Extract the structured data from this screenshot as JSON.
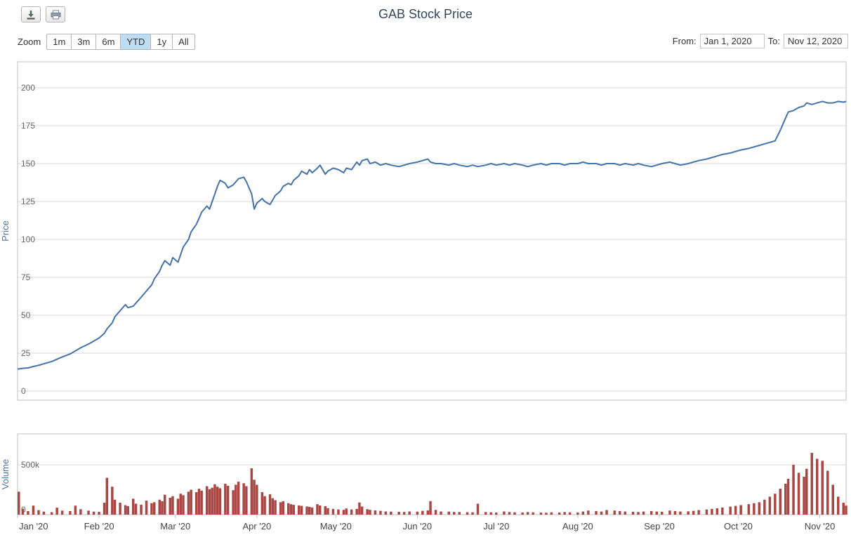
{
  "header": {
    "title": "GAB Stock Price"
  },
  "export_menu": {
    "buttons": [
      {
        "name": "download",
        "icon": "download-icon"
      },
      {
        "name": "print",
        "icon": "print-icon"
      }
    ]
  },
  "toolbar": {
    "zoom_label": "Zoom",
    "zoom_buttons": [
      {
        "label": "1m",
        "selected": false
      },
      {
        "label": "3m",
        "selected": false
      },
      {
        "label": "6m",
        "selected": false
      },
      {
        "label": "YTD",
        "selected": true
      },
      {
        "label": "1y",
        "selected": false
      },
      {
        "label": "All",
        "selected": false
      }
    ],
    "from_label": "From:",
    "from_value": "Jan 1, 2020",
    "to_label": "To:",
    "to_value": "Nov 12, 2020"
  },
  "ui_colors": {
    "title": "#33475b",
    "selected_zoom_bg": "#bfdcf0",
    "price_line": "#4572a7",
    "volume_bar": "#aa4643",
    "grid": "#d8d8d8",
    "plot_border": "#c0c0c0",
    "tick_label": "#666666",
    "axis_title": "#4d759e"
  },
  "x_axis": {
    "ticks": [
      {
        "label": "Jan '20",
        "day": 0
      },
      {
        "label": "Feb '20",
        "day": 31
      },
      {
        "label": "Mar '20",
        "day": 60
      },
      {
        "label": "Apr '20",
        "day": 91
      },
      {
        "label": "May '20",
        "day": 121
      },
      {
        "label": "Jun '20",
        "day": 152
      },
      {
        "label": "Jul '20",
        "day": 182
      },
      {
        "label": "Aug '20",
        "day": 213
      },
      {
        "label": "Sep '20",
        "day": 244
      },
      {
        "label": "Oct '20",
        "day": 274
      },
      {
        "label": "Nov '20",
        "day": 305
      }
    ],
    "range_labels": [
      "Jan 1, 2020",
      "Nov 12, 2020"
    ],
    "x_unit": "days since Jan 1, 2020",
    "xlim": [
      0,
      315
    ]
  },
  "chart_data": [
    {
      "type": "line",
      "title": "GAB Stock Price",
      "series_name": "GAB",
      "ylabel": "Price",
      "yticks": [
        0,
        25,
        50,
        75,
        100,
        125,
        150,
        175,
        200
      ],
      "ylim": [
        0,
        220
      ],
      "color": "#4572a7",
      "points": [
        [
          0,
          14.5
        ],
        [
          2,
          15
        ],
        [
          4,
          15.3
        ],
        [
          6,
          16.2
        ],
        [
          8,
          17
        ],
        [
          10,
          18
        ],
        [
          13,
          19.5
        ],
        [
          15,
          21
        ],
        [
          17,
          22.5
        ],
        [
          20,
          24.5
        ],
        [
          22,
          26.5
        ],
        [
          24,
          28.5
        ],
        [
          27,
          31
        ],
        [
          29,
          33
        ],
        [
          31,
          35
        ],
        [
          33,
          38
        ],
        [
          34,
          41
        ],
        [
          36,
          45
        ],
        [
          37,
          49
        ],
        [
          39,
          53
        ],
        [
          41,
          57
        ],
        [
          42,
          55
        ],
        [
          44,
          56
        ],
        [
          45,
          58
        ],
        [
          47,
          62
        ],
        [
          49,
          66
        ],
        [
          51,
          70
        ],
        [
          52,
          74
        ],
        [
          54,
          79
        ],
        [
          55,
          83
        ],
        [
          56,
          86
        ],
        [
          58,
          83
        ],
        [
          59,
          88
        ],
        [
          61,
          85
        ],
        [
          62,
          90
        ],
        [
          63,
          95
        ],
        [
          65,
          100
        ],
        [
          66,
          105
        ],
        [
          68,
          110
        ],
        [
          69,
          114
        ],
        [
          70,
          118
        ],
        [
          72,
          122
        ],
        [
          73,
          120
        ],
        [
          74,
          125
        ],
        [
          75,
          130
        ],
        [
          76,
          135
        ],
        [
          77,
          139
        ],
        [
          79,
          137
        ],
        [
          80,
          134
        ],
        [
          82,
          136
        ],
        [
          83,
          138
        ],
        [
          84,
          140
        ],
        [
          86,
          141
        ],
        [
          87,
          138
        ],
        [
          89,
          130
        ],
        [
          90,
          120
        ],
        [
          91,
          124
        ],
        [
          93,
          127
        ],
        [
          94,
          125
        ],
        [
          96,
          123
        ],
        [
          97,
          126
        ],
        [
          98,
          129
        ],
        [
          100,
          132
        ],
        [
          101,
          135
        ],
        [
          103,
          137
        ],
        [
          104,
          136
        ],
        [
          105,
          139
        ],
        [
          107,
          142
        ],
        [
          108,
          145
        ],
        [
          110,
          143
        ],
        [
          111,
          146
        ],
        [
          112,
          144
        ],
        [
          114,
          147
        ],
        [
          115,
          149
        ],
        [
          117,
          143
        ],
        [
          118,
          145
        ],
        [
          120,
          147
        ],
        [
          122,
          146
        ],
        [
          124,
          144
        ],
        [
          125,
          147
        ],
        [
          127,
          146
        ],
        [
          129,
          151
        ],
        [
          130,
          149
        ],
        [
          131,
          152
        ],
        [
          133,
          153
        ],
        [
          134,
          150
        ],
        [
          136,
          151
        ],
        [
          138,
          149
        ],
        [
          140,
          150
        ],
        [
          142,
          149
        ],
        [
          145,
          148
        ],
        [
          147,
          149
        ],
        [
          149,
          150
        ],
        [
          152,
          151
        ],
        [
          154,
          152
        ],
        [
          156,
          153
        ],
        [
          157,
          151
        ],
        [
          159,
          150
        ],
        [
          161,
          150
        ],
        [
          164,
          149
        ],
        [
          166,
          150
        ],
        [
          168,
          149
        ],
        [
          171,
          148
        ],
        [
          173,
          149
        ],
        [
          175,
          148
        ],
        [
          178,
          149
        ],
        [
          180,
          150
        ],
        [
          182,
          149
        ],
        [
          185,
          150
        ],
        [
          187,
          149
        ],
        [
          189,
          150
        ],
        [
          192,
          149
        ],
        [
          194,
          148
        ],
        [
          196,
          149
        ],
        [
          199,
          150
        ],
        [
          201,
          149
        ],
        [
          203,
          150
        ],
        [
          206,
          150
        ],
        [
          208,
          149
        ],
        [
          210,
          150
        ],
        [
          213,
          150
        ],
        [
          215,
          151
        ],
        [
          217,
          150
        ],
        [
          220,
          150
        ],
        [
          222,
          149
        ],
        [
          224,
          150
        ],
        [
          227,
          150
        ],
        [
          229,
          149
        ],
        [
          231,
          150
        ],
        [
          234,
          149
        ],
        [
          236,
          150
        ],
        [
          238,
          149
        ],
        [
          241,
          148
        ],
        [
          243,
          149
        ],
        [
          245,
          150
        ],
        [
          248,
          151
        ],
        [
          250,
          150
        ],
        [
          252,
          149
        ],
        [
          255,
          150
        ],
        [
          257,
          151
        ],
        [
          259,
          152
        ],
        [
          262,
          153
        ],
        [
          264,
          154
        ],
        [
          266,
          155
        ],
        [
          268,
          156
        ],
        [
          271,
          157
        ],
        [
          273,
          158
        ],
        [
          275,
          159
        ],
        [
          278,
          160
        ],
        [
          280,
          161
        ],
        [
          282,
          162
        ],
        [
          284,
          163
        ],
        [
          286,
          164
        ],
        [
          288,
          165
        ],
        [
          290,
          172
        ],
        [
          292,
          180
        ],
        [
          293,
          184
        ],
        [
          295,
          185
        ],
        [
          297,
          187
        ],
        [
          299,
          188
        ],
        [
          300,
          190
        ],
        [
          302,
          189
        ],
        [
          304,
          190
        ],
        [
          306,
          191
        ],
        [
          308,
          190
        ],
        [
          310,
          190
        ],
        [
          312,
          191
        ],
        [
          314,
          190.5
        ],
        [
          315,
          191
        ]
      ]
    },
    {
      "type": "bar",
      "series_name": "Volume",
      "ylabel": "Volume",
      "ytick_values": [
        0,
        500000
      ],
      "ytick_labels": [
        "0",
        "500k"
      ],
      "ylim": [
        0,
        800000
      ],
      "color": "#aa4643",
      "points": [
        [
          0,
          230000
        ],
        [
          2,
          60000
        ],
        [
          4,
          35000
        ],
        [
          6,
          90000
        ],
        [
          8,
          45000
        ],
        [
          10,
          30000
        ],
        [
          13,
          25000
        ],
        [
          15,
          70000
        ],
        [
          17,
          40000
        ],
        [
          20,
          35000
        ],
        [
          22,
          90000
        ],
        [
          24,
          55000
        ],
        [
          27,
          40000
        ],
        [
          29,
          30000
        ],
        [
          31,
          28000
        ],
        [
          33,
          120000
        ],
        [
          34,
          370000
        ],
        [
          36,
          280000
        ],
        [
          37,
          150000
        ],
        [
          39,
          120000
        ],
        [
          41,
          95000
        ],
        [
          42,
          85000
        ],
        [
          44,
          160000
        ],
        [
          45,
          110000
        ],
        [
          47,
          100000
        ],
        [
          49,
          140000
        ],
        [
          51,
          115000
        ],
        [
          52,
          125000
        ],
        [
          54,
          150000
        ],
        [
          55,
          135000
        ],
        [
          56,
          200000
        ],
        [
          58,
          170000
        ],
        [
          59,
          185000
        ],
        [
          61,
          160000
        ],
        [
          62,
          210000
        ],
        [
          63,
          195000
        ],
        [
          65,
          230000
        ],
        [
          66,
          250000
        ],
        [
          68,
          225000
        ],
        [
          69,
          260000
        ],
        [
          70,
          240000
        ],
        [
          72,
          285000
        ],
        [
          73,
          255000
        ],
        [
          74,
          270000
        ],
        [
          75,
          305000
        ],
        [
          76,
          280000
        ],
        [
          77,
          265000
        ],
        [
          79,
          310000
        ],
        [
          80,
          290000
        ],
        [
          82,
          245000
        ],
        [
          83,
          300000
        ],
        [
          84,
          330000
        ],
        [
          86,
          315000
        ],
        [
          87,
          285000
        ],
        [
          89,
          465000
        ],
        [
          90,
          350000
        ],
        [
          91,
          300000
        ],
        [
          93,
          225000
        ],
        [
          94,
          185000
        ],
        [
          96,
          205000
        ],
        [
          97,
          165000
        ],
        [
          98,
          145000
        ],
        [
          100,
          125000
        ],
        [
          101,
          135000
        ],
        [
          103,
          115000
        ],
        [
          104,
          105000
        ],
        [
          105,
          98000
        ],
        [
          107,
          92000
        ],
        [
          108,
          88000
        ],
        [
          110,
          82000
        ],
        [
          111,
          78000
        ],
        [
          112,
          72000
        ],
        [
          114,
          105000
        ],
        [
          115,
          92000
        ],
        [
          117,
          85000
        ],
        [
          118,
          65000
        ],
        [
          120,
          58000
        ],
        [
          122,
          52000
        ],
        [
          124,
          48000
        ],
        [
          125,
          62000
        ],
        [
          127,
          52000
        ],
        [
          129,
          58000
        ],
        [
          130,
          122000
        ],
        [
          131,
          82000
        ],
        [
          133,
          55000
        ],
        [
          134,
          48000
        ],
        [
          136,
          42000
        ],
        [
          138,
          38000
        ],
        [
          140,
          32000
        ],
        [
          142,
          30000
        ],
        [
          145,
          28000
        ],
        [
          147,
          27000
        ],
        [
          149,
          32000
        ],
        [
          152,
          30000
        ],
        [
          154,
          38000
        ],
        [
          156,
          42000
        ],
        [
          157,
          135000
        ],
        [
          159,
          48000
        ],
        [
          161,
          32000
        ],
        [
          164,
          30000
        ],
        [
          166,
          27000
        ],
        [
          168,
          26000
        ],
        [
          171,
          25000
        ],
        [
          173,
          23000
        ],
        [
          175,
          110000
        ],
        [
          178,
          26000
        ],
        [
          180,
          23000
        ],
        [
          182,
          21000
        ],
        [
          185,
          32000
        ],
        [
          187,
          26000
        ],
        [
          189,
          23000
        ],
        [
          192,
          21000
        ],
        [
          194,
          26000
        ],
        [
          196,
          23000
        ],
        [
          199,
          21000
        ],
        [
          201,
          19000
        ],
        [
          203,
          23000
        ],
        [
          206,
          21000
        ],
        [
          208,
          26000
        ],
        [
          210,
          23000
        ],
        [
          213,
          21000
        ],
        [
          215,
          31000
        ],
        [
          217,
          41000
        ],
        [
          220,
          36000
        ],
        [
          222,
          31000
        ],
        [
          224,
          46000
        ],
        [
          227,
          41000
        ],
        [
          229,
          36000
        ],
        [
          231,
          31000
        ],
        [
          234,
          29000
        ],
        [
          236,
          26000
        ],
        [
          238,
          31000
        ],
        [
          241,
          36000
        ],
        [
          243,
          31000
        ],
        [
          245,
          29000
        ],
        [
          248,
          41000
        ],
        [
          250,
          36000
        ],
        [
          252,
          31000
        ],
        [
          255,
          33000
        ],
        [
          257,
          38000
        ],
        [
          259,
          46000
        ],
        [
          262,
          52000
        ],
        [
          264,
          58000
        ],
        [
          266,
          64000
        ],
        [
          268,
          72000
        ],
        [
          271,
          80000
        ],
        [
          273,
          88000
        ],
        [
          275,
          96000
        ],
        [
          278,
          105000
        ],
        [
          280,
          115000
        ],
        [
          282,
          125000
        ],
        [
          284,
          150000
        ],
        [
          286,
          180000
        ],
        [
          288,
          210000
        ],
        [
          290,
          260000
        ],
        [
          292,
          310000
        ],
        [
          293,
          360000
        ],
        [
          295,
          500000
        ],
        [
          297,
          420000
        ],
        [
          299,
          380000
        ],
        [
          300,
          460000
        ],
        [
          302,
          620000
        ],
        [
          304,
          560000
        ],
        [
          306,
          540000
        ],
        [
          308,
          440000
        ],
        [
          310,
          300000
        ],
        [
          312,
          180000
        ],
        [
          314,
          120000
        ],
        [
          315,
          90000
        ]
      ]
    }
  ]
}
